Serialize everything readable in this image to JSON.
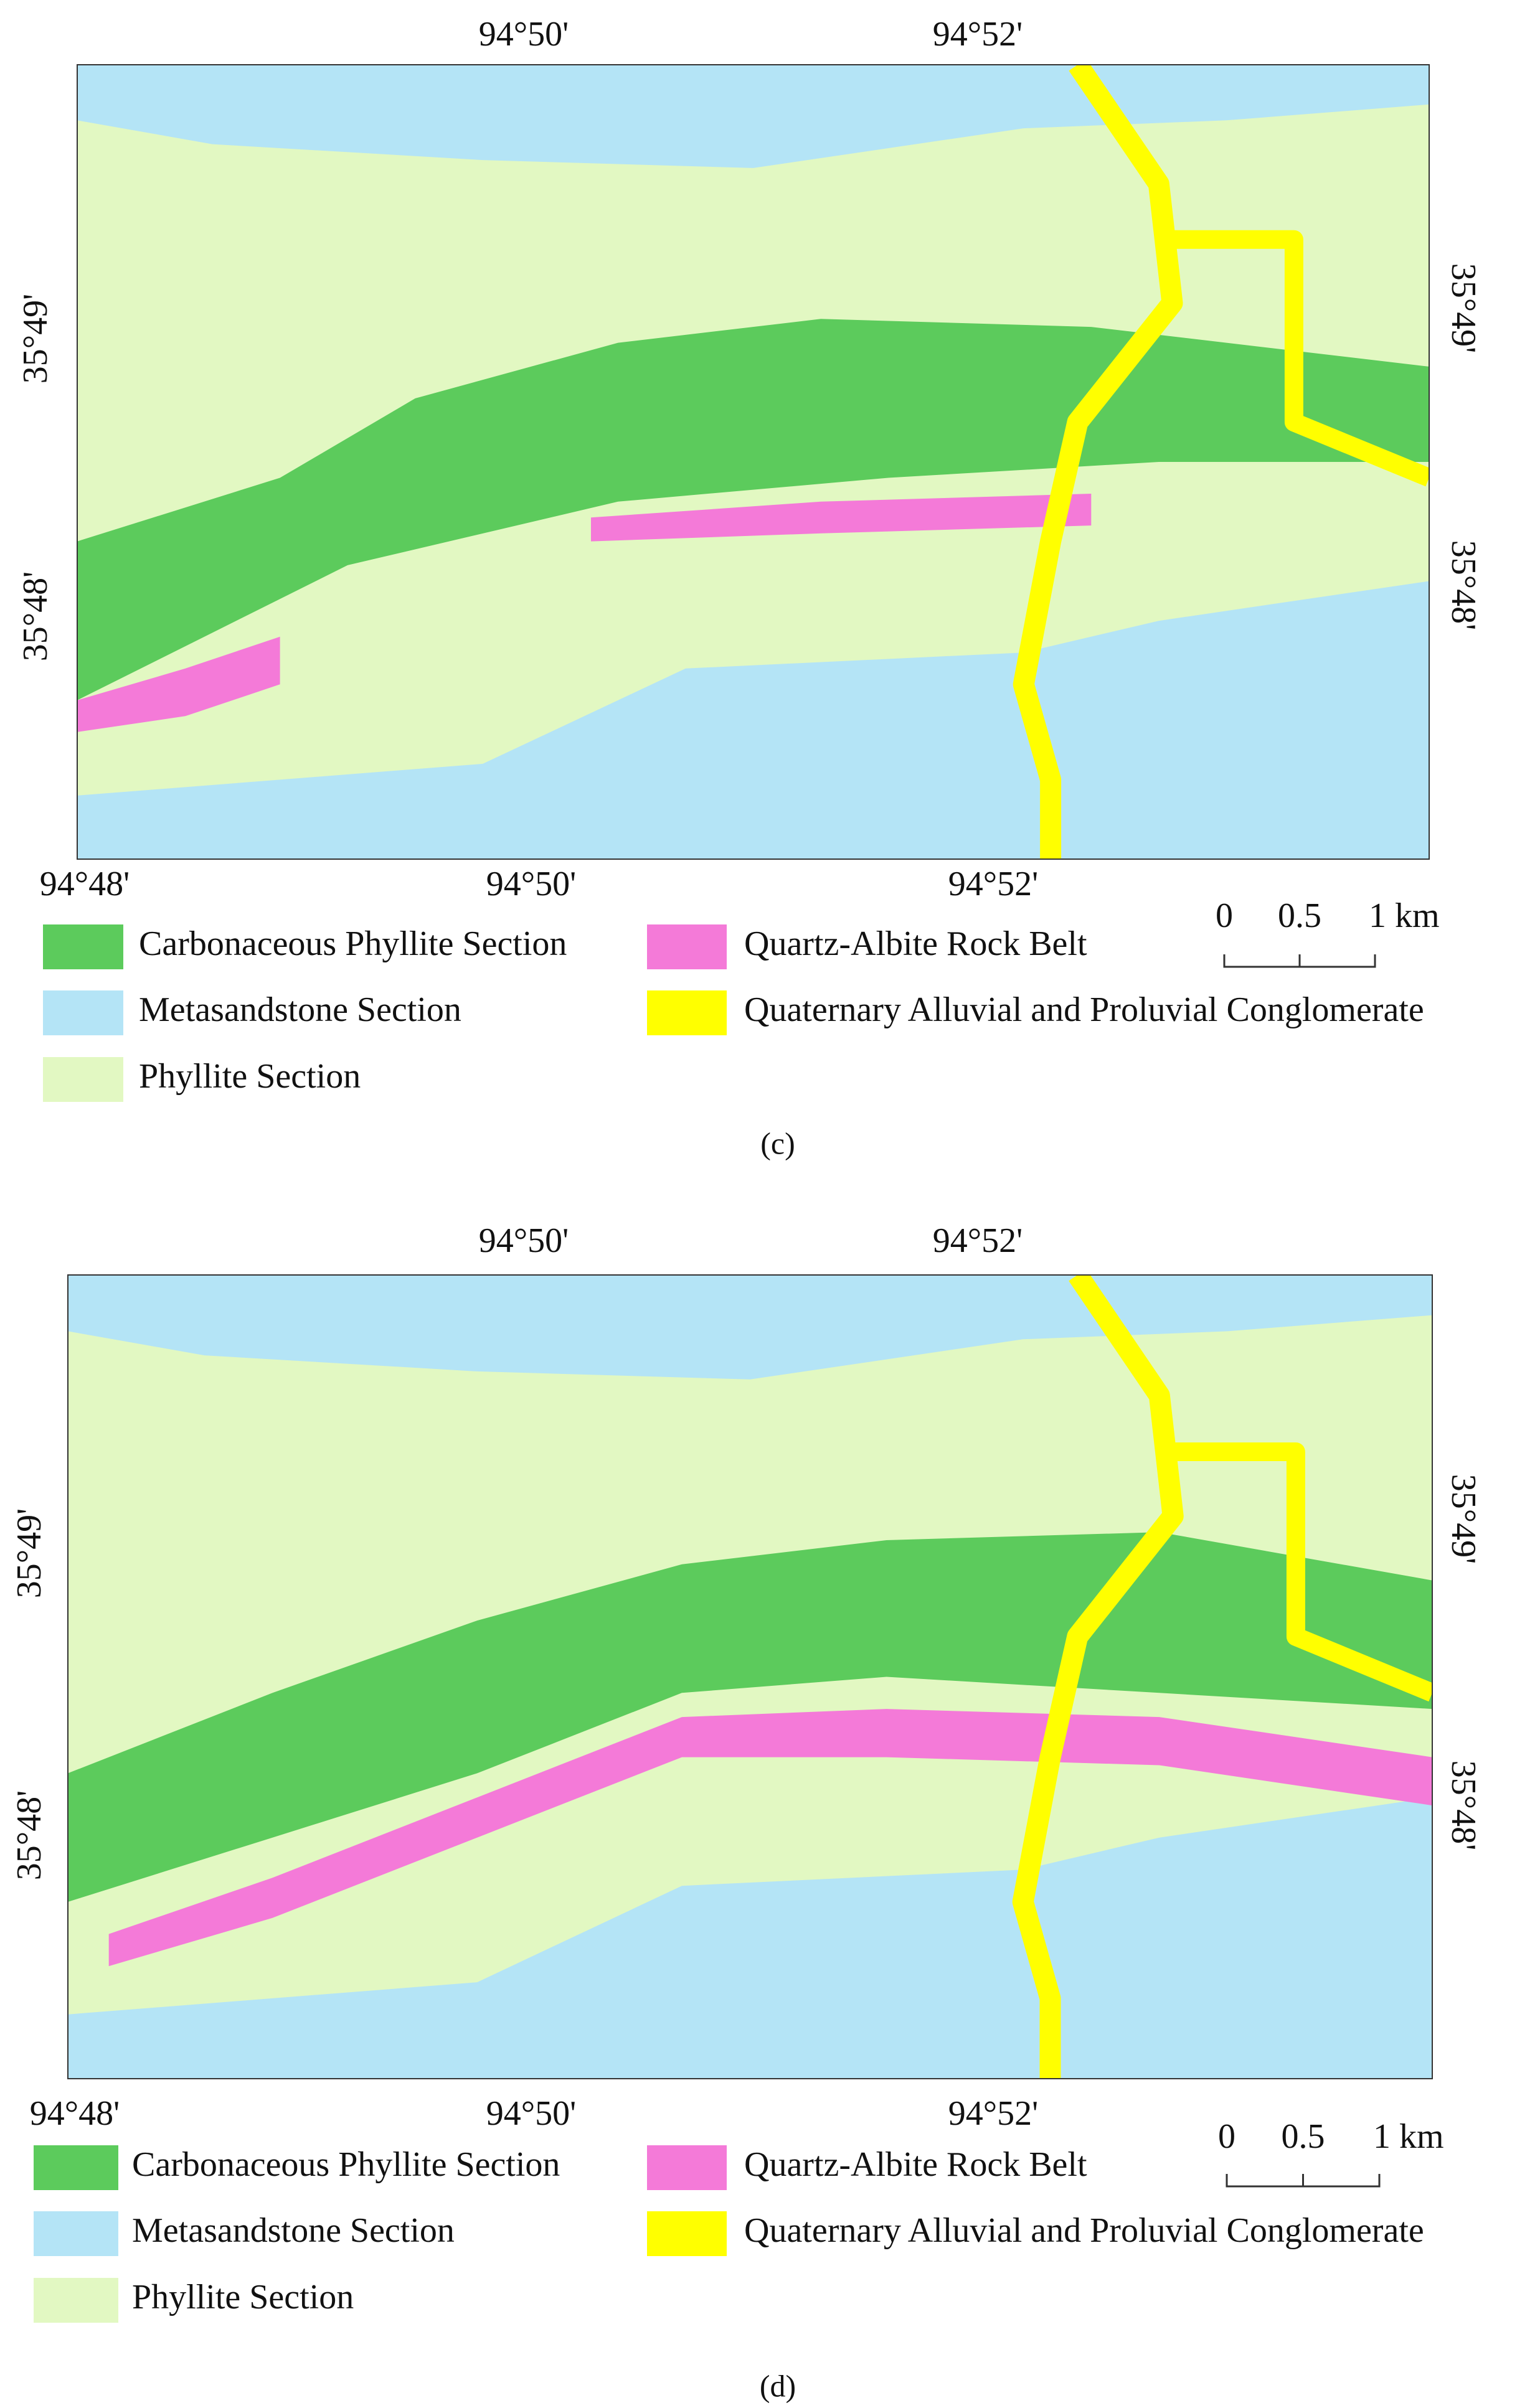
{
  "panels": [
    {
      "caption": "(c)",
      "top_labels": [
        "94°50'",
        "94°52'"
      ],
      "bottom_labels": [
        "94°48'",
        "94°50'",
        "94°52'"
      ],
      "left_labels": [
        "35°49'",
        "35°48'"
      ],
      "right_labels": [
        "35°49'",
        "35°48'"
      ],
      "legend": [
        {
          "name": "Carbonaceous Phyllite Section",
          "color": "#5ccb5c"
        },
        {
          "name": "Metasandstone Section",
          "color": "#b4e4f6"
        },
        {
          "name": "Phyllite Section",
          "color": "#e2f8c2"
        },
        {
          "name": "Quartz-Albite Rock Belt",
          "color": "#f47ad8"
        },
        {
          "name": "Quaternary Alluvial and Proluvial Conglomerate",
          "color": "#ffff00"
        }
      ],
      "scale_labels": [
        "0",
        "0.5",
        "1 km"
      ]
    },
    {
      "caption": "(d)",
      "top_labels": [
        "94°50'",
        "94°52'"
      ],
      "bottom_labels": [
        "94°48'",
        "94°50'",
        "94°52'"
      ],
      "left_labels": [
        "35°49'",
        "35°48'"
      ],
      "right_labels": [
        "35°49'",
        "35°48'"
      ],
      "legend": [
        {
          "name": "Carbonaceous Phyllite Section",
          "color": "#5ccb5c"
        },
        {
          "name": "Metasandstone Section",
          "color": "#b4e4f6"
        },
        {
          "name": "Phyllite Section",
          "color": "#e2f8c2"
        },
        {
          "name": "Quartz-Albite Rock Belt",
          "color": "#f47ad8"
        },
        {
          "name": "Quaternary Alluvial and Proluvial Conglomerate",
          "color": "#ffff00"
        }
      ],
      "scale_labels": [
        "0",
        "0.5",
        "1 km"
      ]
    }
  ]
}
